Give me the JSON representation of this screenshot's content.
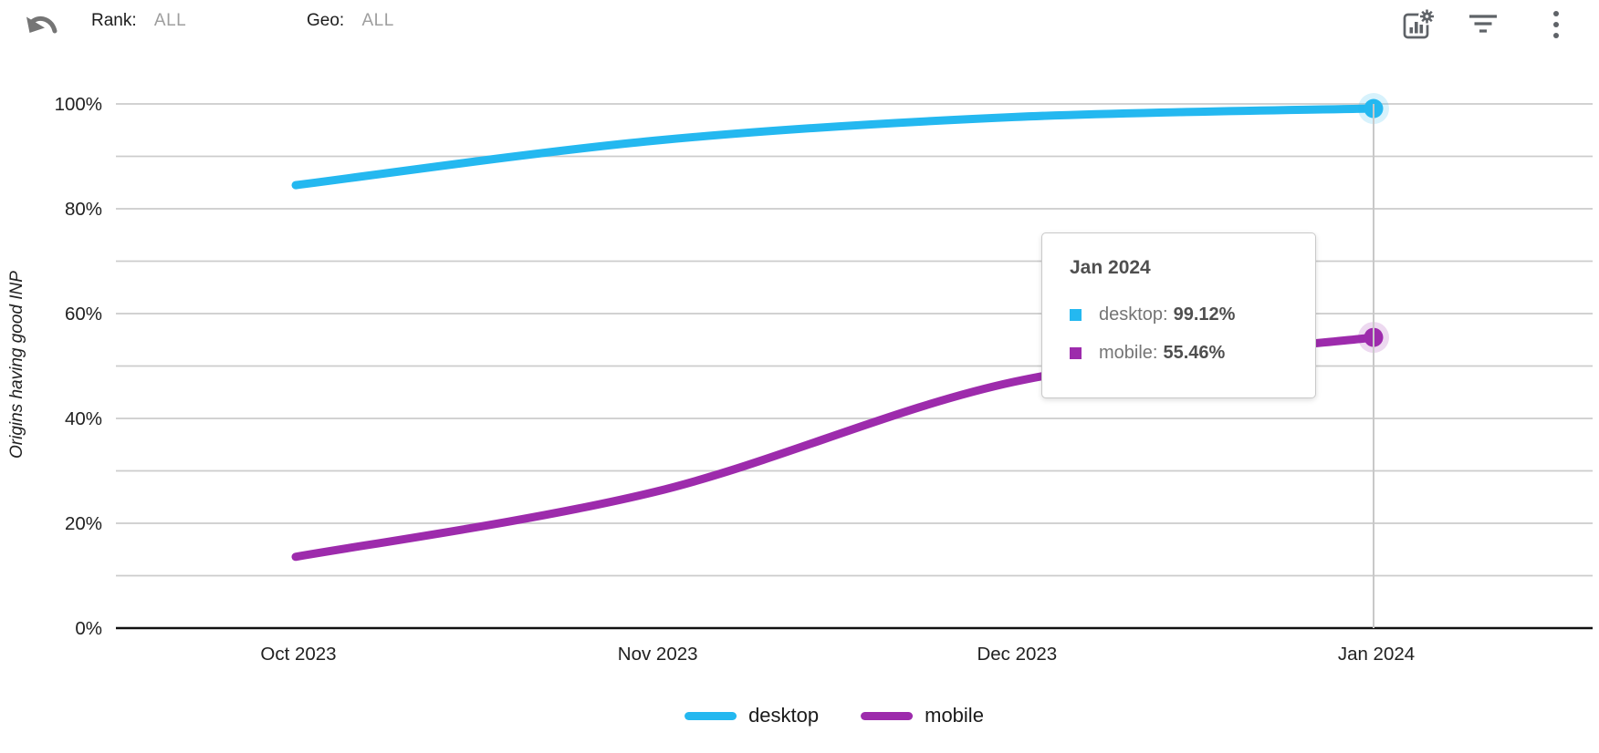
{
  "toolbar": {
    "rank_label": "Rank:",
    "rank_value": "ALL",
    "geo_label": "Geo:",
    "geo_value": "ALL",
    "icons": [
      "undo-icon",
      "chart-settings-icon",
      "filter-icon",
      "kebab-menu-icon"
    ]
  },
  "tooltip": {
    "title": "Jan 2024",
    "rows": [
      {
        "series": "desktop",
        "label": "desktop:",
        "value": "99.12%",
        "color": "#24b8f0"
      },
      {
        "series": "mobile",
        "label": "mobile:",
        "value": "55.46%",
        "color": "#9d2bac"
      }
    ]
  },
  "legend": [
    {
      "label": "desktop",
      "color": "#24b8f0"
    },
    {
      "label": "mobile",
      "color": "#9d2bac"
    }
  ],
  "chart_data": {
    "type": "line",
    "title": "",
    "xlabel": "",
    "ylabel": "Origins having good INP",
    "categories": [
      "Oct 2023",
      "Nov 2023",
      "Dec 2023",
      "Jan 2024"
    ],
    "series": [
      {
        "name": "desktop",
        "color": "#24b8f0",
        "values": [
          84.5,
          93.0,
          97.5,
          99.12
        ]
      },
      {
        "name": "mobile",
        "color": "#9d2bac",
        "values": [
          13.6,
          26.0,
          47.0,
          55.46
        ]
      }
    ],
    "ylim": [
      0,
      100
    ],
    "ytick_step_labeled": 20,
    "grid_step": 10,
    "ytick_suffix": "%",
    "legend_position": "bottom",
    "grid": true,
    "highlight_category": "Jan 2024",
    "crosshair": true
  },
  "colors": {
    "gridline": "#cccccc",
    "axis": "#111111",
    "crosshair": "#c8c8c8",
    "tick_text": "#212121",
    "icon_gray": "#5f6368",
    "undo_gray": "#757575"
  }
}
